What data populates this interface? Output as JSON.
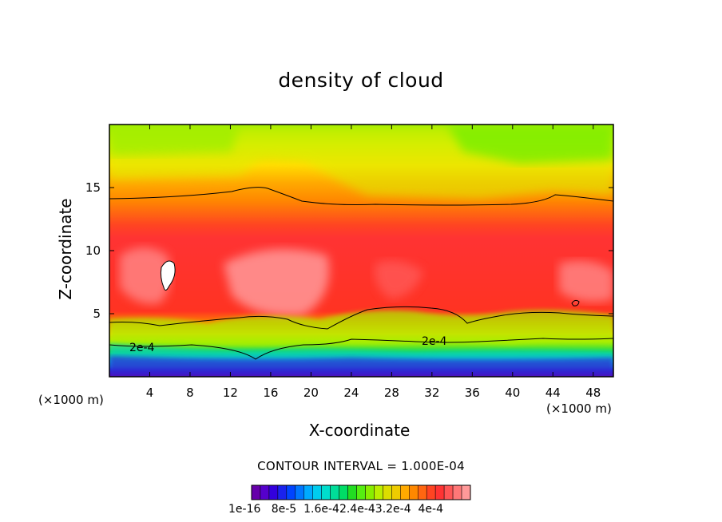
{
  "chart_data": {
    "type": "heatmap",
    "title": "density of cloud",
    "xlabel": "X-coordinate",
    "ylabel": "Z-coordinate",
    "x_unit": "(×1000 m)",
    "y_unit": "(×1000 m)",
    "xlim": [
      0,
      50
    ],
    "ylim": [
      0,
      20
    ],
    "xticks": [
      "4",
      "8",
      "12",
      "16",
      "20",
      "24",
      "28",
      "32",
      "36",
      "40",
      "44",
      "48"
    ],
    "yticks": [
      "5",
      "10",
      "15"
    ],
    "contour_lines": [
      {
        "level": "2e-4",
        "label": "2e-4"
      }
    ],
    "contour_interval_text": "CONTOUR INTERVAL = 1.000E-04",
    "colorbar": {
      "labels": [
        "1e-16",
        "8e-5",
        "1.6e-4",
        "2.4e-4",
        "3.2e-4",
        "4e-4"
      ],
      "label_text": "1e-16   8e-5  1.6e-42.4e-43.2e-4  4e-4",
      "colors": [
        "#6600aa",
        "#5500cc",
        "#3300dd",
        "#1a22ee",
        "#0044ff",
        "#0077ff",
        "#00aaff",
        "#00ccee",
        "#00ddcc",
        "#00dd99",
        "#00dd66",
        "#22dd22",
        "#55ee11",
        "#88ee00",
        "#bbee00",
        "#dddd00",
        "#eecc00",
        "#ffaa00",
        "#ff8800",
        "#ff6611",
        "#ff4422",
        "#ff3333",
        "#ff5555",
        "#ff7777",
        "#ff9999"
      ]
    }
  }
}
